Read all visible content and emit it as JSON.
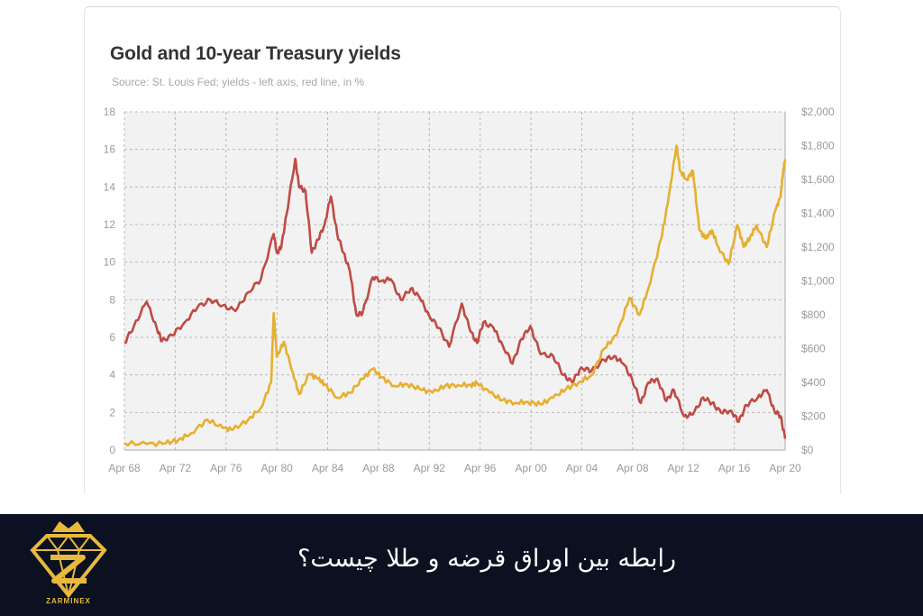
{
  "chart_data": {
    "type": "line",
    "title": "Gold and 10-year Treasury yields",
    "subtitle": "Source: St. Louis Fed; yields - left axis, red line, in %",
    "x_ticks": [
      "Apr 68",
      "Apr 72",
      "Apr 76",
      "Apr 80",
      "Apr 84",
      "Apr 88",
      "Apr 92",
      "Apr 96",
      "Apr 00",
      "Apr 04",
      "Apr 08",
      "Apr 12",
      "Apr 16",
      "Apr 20"
    ],
    "xlim": [
      1968.25,
      2020.25
    ],
    "y_left": {
      "ticks": [
        "0",
        "2",
        "4",
        "6",
        "8",
        "10",
        "12",
        "14",
        "16",
        "18"
      ],
      "ylim": [
        0,
        18
      ]
    },
    "y_right": {
      "ticks": [
        "$0",
        "$200",
        "$400",
        "$600",
        "$800",
        "$1,000",
        "$1,200",
        "$1,400",
        "$1,600",
        "$1,800",
        "$2,000"
      ],
      "ylim": [
        0,
        2000
      ]
    },
    "grid": true,
    "series": [
      {
        "color": "#c04a44",
        "axis": "left",
        "points": [
          [
            1968.25,
            5.7
          ],
          [
            1969,
            6.6
          ],
          [
            1970,
            7.9
          ],
          [
            1970.8,
            6.5
          ],
          [
            1971.2,
            5.8
          ],
          [
            1972,
            6.1
          ],
          [
            1973,
            6.8
          ],
          [
            1974,
            7.6
          ],
          [
            1975,
            8.0
          ],
          [
            1976,
            7.7
          ],
          [
            1977,
            7.4
          ],
          [
            1978,
            8.4
          ],
          [
            1979,
            9.1
          ],
          [
            1980.0,
            11.5
          ],
          [
            1980.25,
            10.5
          ],
          [
            1980.6,
            10.8
          ],
          [
            1981.0,
            12.5
          ],
          [
            1981.7,
            15.5
          ],
          [
            1982.0,
            14.0
          ],
          [
            1982.5,
            13.8
          ],
          [
            1983.0,
            10.5
          ],
          [
            1983.5,
            11.2
          ],
          [
            1984.0,
            12.0
          ],
          [
            1984.5,
            13.5
          ],
          [
            1985.0,
            11.5
          ],
          [
            1985.5,
            10.5
          ],
          [
            1986.0,
            9.5
          ],
          [
            1986.5,
            7.2
          ],
          [
            1987.0,
            7.3
          ],
          [
            1987.8,
            9.2
          ],
          [
            1988.5,
            9.0
          ],
          [
            1989.2,
            9.1
          ],
          [
            1990.0,
            8.0
          ],
          [
            1990.8,
            8.6
          ],
          [
            1991.5,
            8.1
          ],
          [
            1992.2,
            7.2
          ],
          [
            1993.0,
            6.5
          ],
          [
            1993.8,
            5.5
          ],
          [
            1994.8,
            7.8
          ],
          [
            1995.5,
            6.3
          ],
          [
            1996.0,
            5.7
          ],
          [
            1996.5,
            6.8
          ],
          [
            1997.3,
            6.5
          ],
          [
            1998.0,
            5.6
          ],
          [
            1998.8,
            4.6
          ],
          [
            1999.5,
            5.9
          ],
          [
            2000.2,
            6.6
          ],
          [
            2001.0,
            5.1
          ],
          [
            2002.0,
            5.0
          ],
          [
            2002.8,
            4.0
          ],
          [
            2003.5,
            3.6
          ],
          [
            2004.2,
            4.4
          ],
          [
            2005.0,
            4.2
          ],
          [
            2006.0,
            4.8
          ],
          [
            2006.8,
            5.0
          ],
          [
            2007.5,
            4.6
          ],
          [
            2008.2,
            3.8
          ],
          [
            2008.9,
            2.5
          ],
          [
            2009.5,
            3.6
          ],
          [
            2010.2,
            3.8
          ],
          [
            2010.9,
            2.6
          ],
          [
            2011.5,
            3.2
          ],
          [
            2012.3,
            1.8
          ],
          [
            2013.0,
            1.9
          ],
          [
            2013.8,
            2.8
          ],
          [
            2014.5,
            2.5
          ],
          [
            2015.2,
            2.0
          ],
          [
            2016.0,
            2.1
          ],
          [
            2016.6,
            1.5
          ],
          [
            2017.2,
            2.4
          ],
          [
            2018.1,
            2.8
          ],
          [
            2018.8,
            3.2
          ],
          [
            2019.4,
            2.1
          ],
          [
            2019.9,
            1.8
          ],
          [
            2020.25,
            0.6
          ]
        ]
      },
      {
        "color": "#e6af2e",
        "axis": "right",
        "points": [
          [
            1968.25,
            39
          ],
          [
            1970,
            36
          ],
          [
            1971.5,
            40
          ],
          [
            1972.5,
            60
          ],
          [
            1973.5,
            100
          ],
          [
            1974.8,
            180
          ],
          [
            1976.0,
            130
          ],
          [
            1976.8,
            120
          ],
          [
            1978.0,
            180
          ],
          [
            1979.0,
            250
          ],
          [
            1979.8,
            400
          ],
          [
            1980.0,
            810
          ],
          [
            1980.25,
            550
          ],
          [
            1980.8,
            640
          ],
          [
            1981.5,
            460
          ],
          [
            1982.0,
            330
          ],
          [
            1982.8,
            450
          ],
          [
            1983.5,
            420
          ],
          [
            1984.0,
            390
          ],
          [
            1985.0,
            310
          ],
          [
            1986.0,
            340
          ],
          [
            1987.0,
            420
          ],
          [
            1987.8,
            480
          ],
          [
            1988.5,
            430
          ],
          [
            1989.5,
            380
          ],
          [
            1990.5,
            390
          ],
          [
            1991.5,
            360
          ],
          [
            1992.5,
            340
          ],
          [
            1993.5,
            380
          ],
          [
            1994.5,
            385
          ],
          [
            1995.5,
            385
          ],
          [
            1996.0,
            395
          ],
          [
            1997.0,
            340
          ],
          [
            1998.0,
            295
          ],
          [
            1999.0,
            280
          ],
          [
            2000.0,
            285
          ],
          [
            2001.0,
            270
          ],
          [
            2002.0,
            310
          ],
          [
            2003.0,
            360
          ],
          [
            2004.0,
            400
          ],
          [
            2005.0,
            440
          ],
          [
            2006.0,
            600
          ],
          [
            2007.0,
            680
          ],
          [
            2008.0,
            900
          ],
          [
            2008.8,
            800
          ],
          [
            2009.5,
            960
          ],
          [
            2010.5,
            1250
          ],
          [
            2011.0,
            1450
          ],
          [
            2011.7,
            1800
          ],
          [
            2012.0,
            1650
          ],
          [
            2012.5,
            1600
          ],
          [
            2013.0,
            1650
          ],
          [
            2013.5,
            1300
          ],
          [
            2014.0,
            1250
          ],
          [
            2014.5,
            1300
          ],
          [
            2015.0,
            1200
          ],
          [
            2015.8,
            1100
          ],
          [
            2016.5,
            1330
          ],
          [
            2017.0,
            1200
          ],
          [
            2017.5,
            1260
          ],
          [
            2018.0,
            1330
          ],
          [
            2018.8,
            1200
          ],
          [
            2019.5,
            1420
          ],
          [
            2019.9,
            1500
          ],
          [
            2020.1,
            1650
          ],
          [
            2020.25,
            1720
          ]
        ]
      }
    ]
  },
  "footer": {
    "headline": "رابطه بین اوراق قرضه و طلا چیست؟",
    "brand": "ZARMINEX"
  },
  "colors": {
    "footer_bg": "#0b1120",
    "brand_gold": "#e8b93c",
    "plot_bg": "#f2f2f2"
  }
}
